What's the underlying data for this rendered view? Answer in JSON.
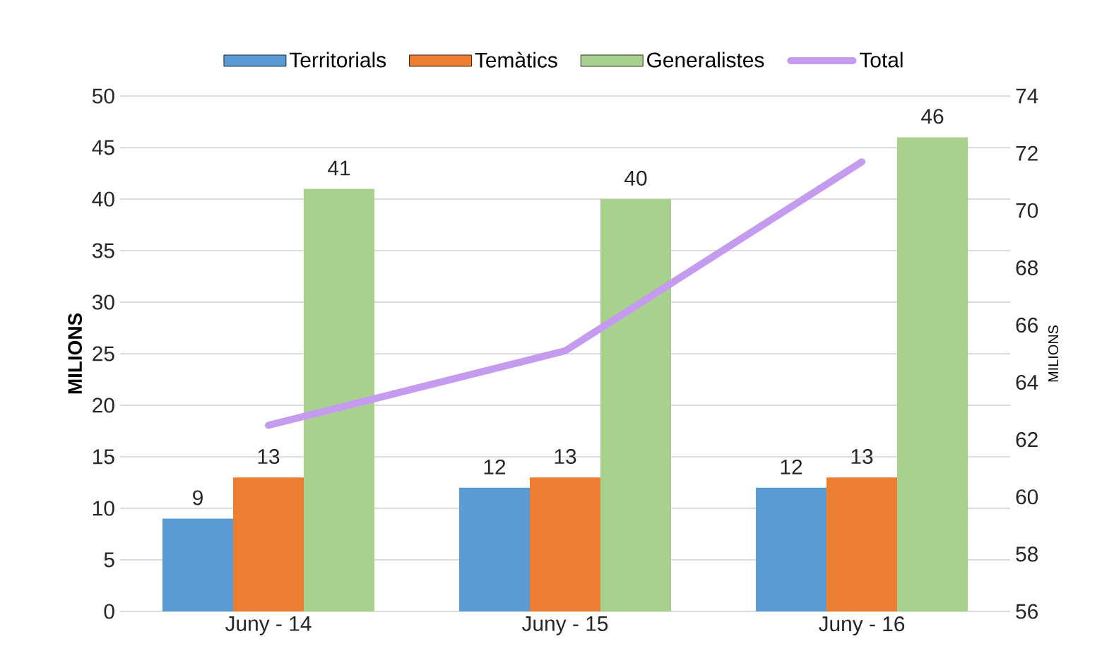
{
  "chart_data": {
    "type": "bar",
    "categories": [
      "Juny - 14",
      "Juny - 15",
      "Juny - 16"
    ],
    "ylabel": "MILIONS",
    "y2label": "MILIONS",
    "ylim": [
      0,
      50
    ],
    "yticks": [
      0,
      5,
      10,
      15,
      20,
      25,
      30,
      35,
      40,
      45,
      50
    ],
    "y2lim": [
      56,
      74
    ],
    "y2ticks": [
      56,
      58,
      60,
      62,
      64,
      66,
      68,
      70,
      72,
      74
    ],
    "grid": "y",
    "legend": "top",
    "series": [
      {
        "name": "Territorials",
        "color": "#5b9bd5",
        "values": [
          9,
          12,
          12
        ],
        "value_labels": [
          "9",
          "12",
          "12"
        ]
      },
      {
        "name": "Temàtics",
        "color": "#ed7d31",
        "values": [
          13,
          13,
          13
        ],
        "value_labels": [
          "13",
          "13",
          "13"
        ]
      },
      {
        "name": "Generalistes",
        "color": "#a9d18e",
        "values": [
          41,
          40,
          46
        ],
        "value_labels": [
          "41",
          "40",
          "46"
        ]
      },
      {
        "name": "Total",
        "type": "line",
        "axis": "y2",
        "color": "#c59bf0",
        "values": [
          62.5,
          65.1,
          71.7
        ]
      }
    ]
  }
}
